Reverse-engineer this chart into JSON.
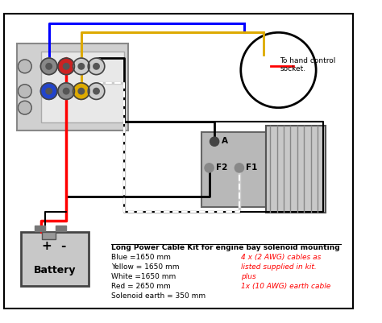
{
  "bg_color": "#ffffff",
  "text_legend_title": "Long Power Cable Kit for engine bay solenoid mounting",
  "text_blue": "Blue =1650 mm",
  "text_yellow": "Yellow = 1650 mm",
  "text_white": "White =1650 mm",
  "text_red": "Red = 2650 mm",
  "text_solenoid": "Solenoid earth = 350 mm",
  "text_red_info1": "4 x (2 AWG) cables as",
  "text_red_info2": "listed supplied in kit.",
  "text_red_info3": "plus",
  "text_red_info4": "1x (10 AWG) earth cable",
  "text_hand_control": "To hand control\nsocket.",
  "text_A": "A",
  "text_F2": "F2",
  "text_F1": "F1",
  "text_battery": "Battery",
  "text_battery_plus": "+",
  "text_battery_minus": "-"
}
